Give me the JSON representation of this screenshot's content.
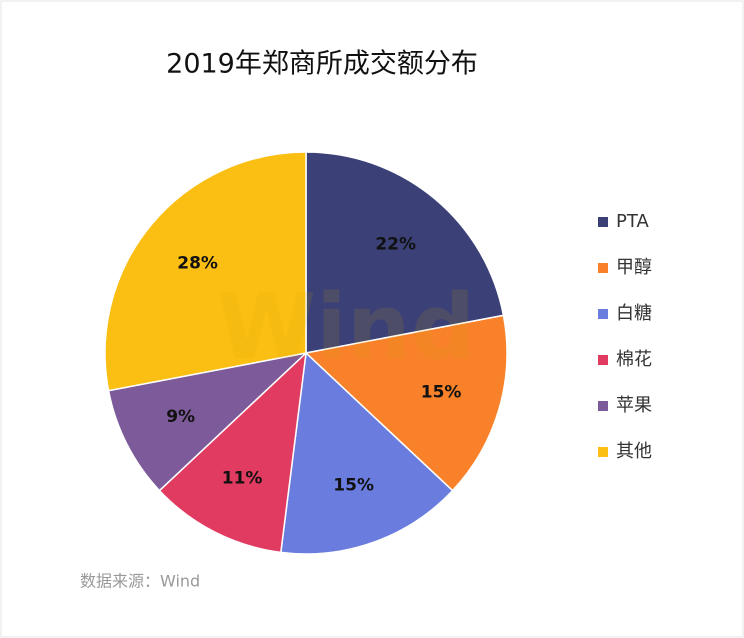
{
  "chart_data": {
    "type": "pie",
    "title": "2019年郑商所成交额分布",
    "categories": [
      "PTA",
      "甲醇",
      "白糖",
      "棉花",
      "苹果",
      "其他"
    ],
    "values": [
      22,
      15,
      15,
      11,
      9,
      28
    ],
    "value_labels": [
      "22%",
      "15%",
      "15%",
      "11%",
      "9%",
      "28%"
    ],
    "colors": [
      "#3b4177",
      "#f8812a",
      "#6a7ddf",
      "#e23b62",
      "#7d5b9a",
      "#fbbf14"
    ],
    "legend": "right",
    "watermark": "Wind",
    "source": "数据来源：Wind"
  }
}
